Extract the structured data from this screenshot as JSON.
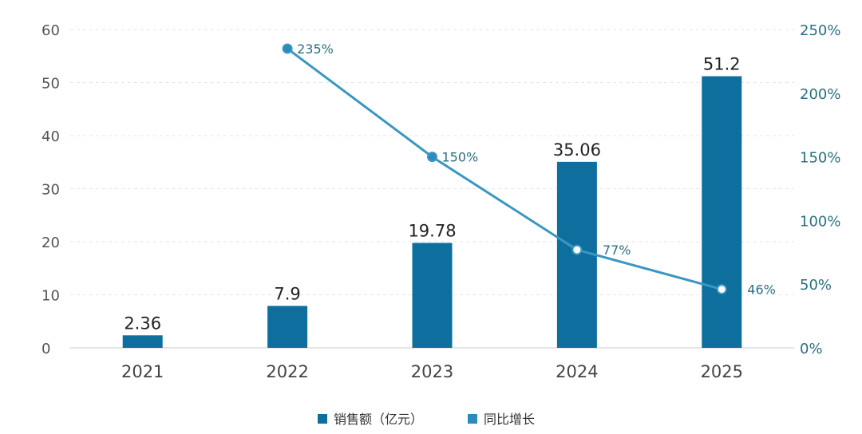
{
  "chart_data": {
    "type": "bar",
    "categories": [
      "2021",
      "2022",
      "2023",
      "2024",
      "2025"
    ],
    "series": [
      {
        "name": "销售额（亿元）",
        "type": "bar",
        "axis": "left",
        "values": [
          2.36,
          7.9,
          19.78,
          35.06,
          51.2
        ],
        "labels": [
          "2.36",
          "7.9",
          "19.78",
          "35.06",
          "51.2"
        ]
      },
      {
        "name": "同比增长",
        "type": "line",
        "axis": "right",
        "values": [
          null,
          235,
          150,
          77,
          46
        ],
        "labels": [
          "",
          "235%",
          "150%",
          "77%",
          "46%"
        ]
      }
    ],
    "y_left": {
      "ticks": [
        "0",
        "10",
        "20",
        "30",
        "40",
        "50",
        "60"
      ],
      "lim": [
        0,
        60
      ]
    },
    "y_right": {
      "ticks": [
        "0%",
        "50%",
        "100%",
        "150%",
        "200%",
        "250%"
      ],
      "lim": [
        0,
        250
      ]
    },
    "legend_position": "bottom",
    "grid": true,
    "colors": {
      "bar": "#0e6f9e",
      "line": "#3a97c2",
      "marker_fill_filled": "#2a8bbd",
      "marker_fill_hollow": "#ffffff",
      "right_axis_text": "#2b6f80"
    }
  }
}
